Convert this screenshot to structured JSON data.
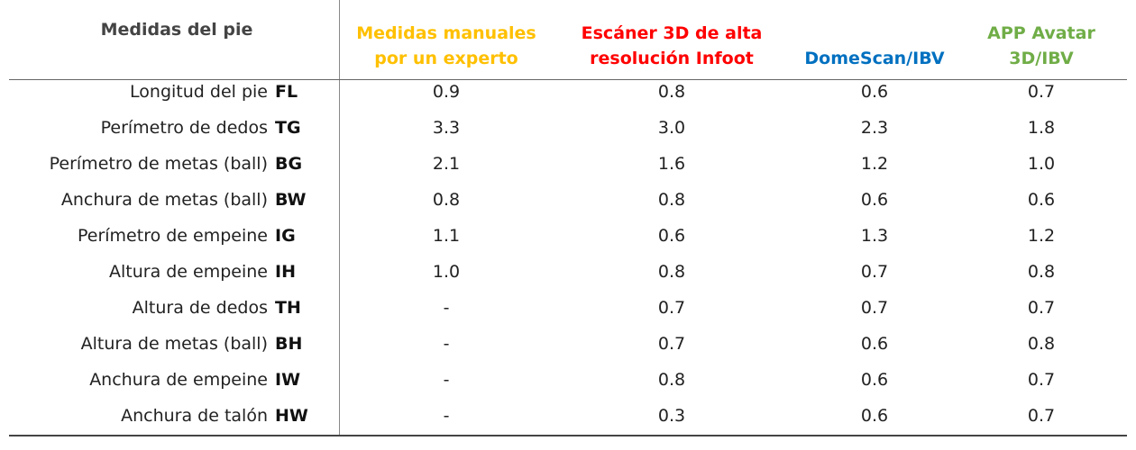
{
  "table": {
    "header": {
      "title": "Medidas del pie",
      "columns": [
        {
          "lines": [
            "Medidas manuales",
            "por un experto"
          ],
          "color": "#ffc000"
        },
        {
          "lines": [
            "Escáner 3D de alta",
            "resolución Infoot"
          ],
          "color": "#ff0000"
        },
        {
          "lines": [
            "DomeScan/IBV"
          ],
          "color": "#0070c0"
        },
        {
          "lines": [
            "APP Avatar",
            "3D/IBV"
          ],
          "color": "#70ad47"
        }
      ]
    },
    "rows": [
      {
        "label": "Longitud del pie",
        "code": "FL",
        "values": [
          "0.9",
          "0.8",
          "0.6",
          "0.7"
        ]
      },
      {
        "label": "Perímetro de dedos",
        "code": "TG",
        "values": [
          "3.3",
          "3.0",
          "2.3",
          "1.8"
        ]
      },
      {
        "label": "Perímetro de metas (ball)",
        "code": "BG",
        "values": [
          "2.1",
          "1.6",
          "1.2",
          "1.0"
        ]
      },
      {
        "label": "Anchura de metas (ball)",
        "code": "BW",
        "values": [
          "0.8",
          "0.8",
          "0.6",
          "0.6"
        ]
      },
      {
        "label": "Perímetro de empeine",
        "code": "IG",
        "values": [
          "1.1",
          "0.6",
          "1.3",
          "1.2"
        ]
      },
      {
        "label": "Altura de empeine",
        "code": "IH",
        "values": [
          "1.0",
          "0.8",
          "0.7",
          "0.8"
        ]
      },
      {
        "label": "Altura de dedos",
        "code": "TH",
        "values": [
          "-",
          "0.7",
          "0.7",
          "0.7"
        ]
      },
      {
        "label": "Altura de metas (ball)",
        "code": "BH",
        "values": [
          "-",
          "0.7",
          "0.6",
          "0.8"
        ]
      },
      {
        "label": "Anchura de empeine",
        "code": "IW",
        "values": [
          "-",
          "0.8",
          "0.6",
          "0.7"
        ]
      },
      {
        "label": "Anchura de talón",
        "code": "HW",
        "values": [
          "-",
          "0.3",
          "0.6",
          "0.7"
        ]
      }
    ]
  }
}
